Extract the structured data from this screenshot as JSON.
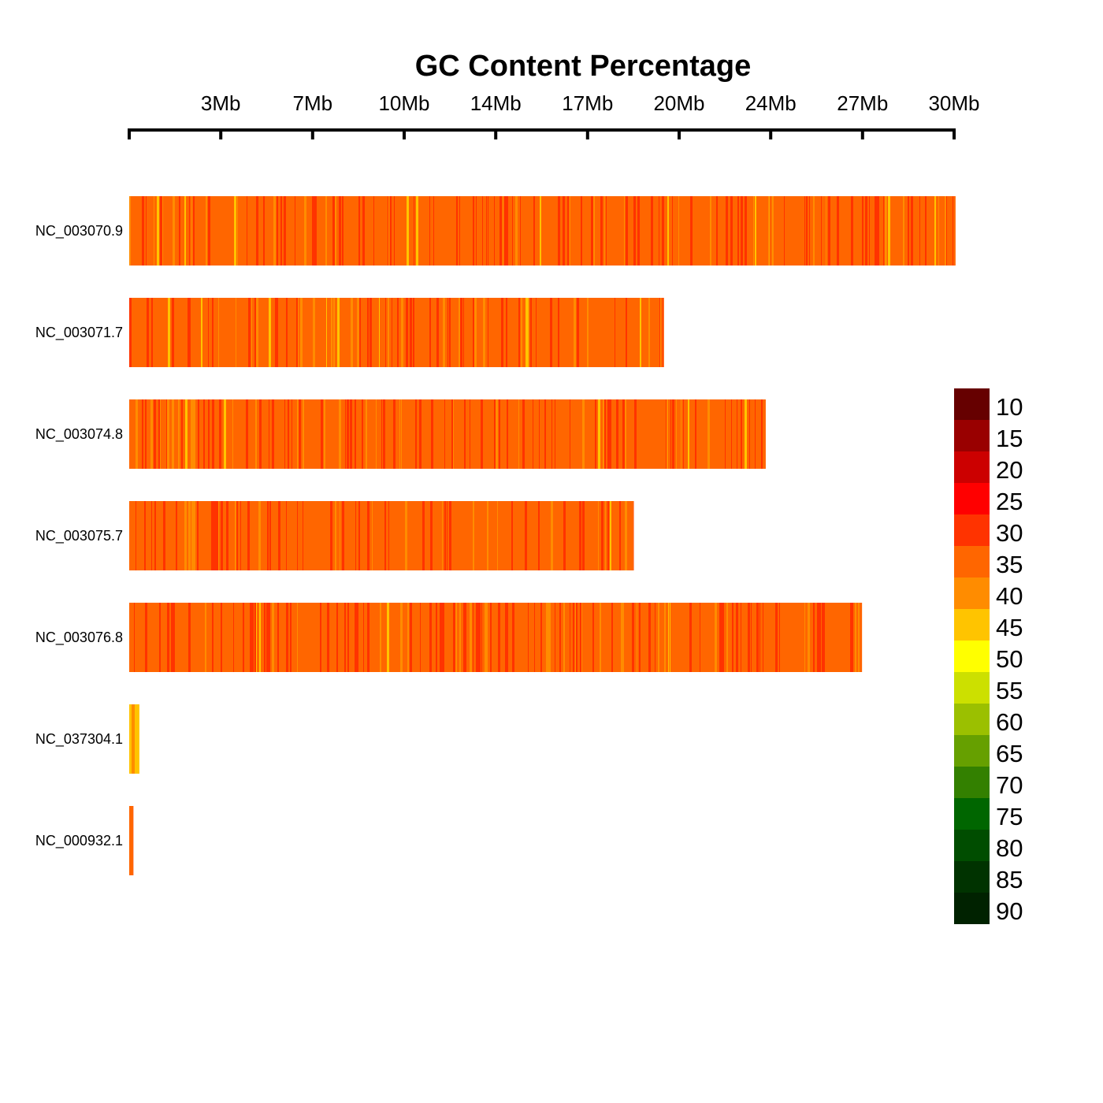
{
  "chart_data": {
    "type": "heatmap",
    "title": "GC Content Percentage",
    "x_axis": {
      "unit": "Mb",
      "ticks": [
        {
          "value": 0,
          "label": ""
        },
        {
          "value": 3.33,
          "label": "3Mb"
        },
        {
          "value": 6.67,
          "label": "7Mb"
        },
        {
          "value": 10.0,
          "label": "10Mb"
        },
        {
          "value": 13.33,
          "label": "14Mb"
        },
        {
          "value": 16.67,
          "label": "17Mb"
        },
        {
          "value": 20.0,
          "label": "20Mb"
        },
        {
          "value": 23.33,
          "label": "24Mb"
        },
        {
          "value": 26.67,
          "label": "27Mb"
        },
        {
          "value": 30.0,
          "label": "30Mb"
        }
      ],
      "range": [
        0,
        30.0
      ]
    },
    "chromosomes": [
      {
        "name": "NC_003070.9",
        "length_mb": 30.05,
        "mean_gc": 36
      },
      {
        "name": "NC_003071.7",
        "length_mb": 19.45,
        "mean_gc": 36
      },
      {
        "name": "NC_003074.8",
        "length_mb": 23.15,
        "mean_gc": 36
      },
      {
        "name": "NC_003075.7",
        "length_mb": 18.35,
        "mean_gc": 36
      },
      {
        "name": "NC_003076.8",
        "length_mb": 26.65,
        "mean_gc": 36
      },
      {
        "name": "NC_037304.1",
        "length_mb": 0.37,
        "mean_gc": 44
      },
      {
        "name": "NC_000932.1",
        "length_mb": 0.15,
        "mean_gc": 37
      }
    ],
    "legend": {
      "position": "right",
      "entries": [
        {
          "value": "10",
          "color": "#660000"
        },
        {
          "value": "15",
          "color": "#990000"
        },
        {
          "value": "20",
          "color": "#cc0000"
        },
        {
          "value": "25",
          "color": "#ff0000"
        },
        {
          "value": "30",
          "color": "#ff3300"
        },
        {
          "value": "35",
          "color": "#ff6600"
        },
        {
          "value": "40",
          "color": "#ff8c00"
        },
        {
          "value": "45",
          "color": "#ffc400"
        },
        {
          "value": "50",
          "color": "#ffff00"
        },
        {
          "value": "55",
          "color": "#cce000"
        },
        {
          "value": "60",
          "color": "#9bc000"
        },
        {
          "value": "65",
          "color": "#66a000"
        },
        {
          "value": "70",
          "color": "#338000"
        },
        {
          "value": "75",
          "color": "#006600"
        },
        {
          "value": "80",
          "color": "#004d00"
        },
        {
          "value": "85",
          "color": "#003300"
        },
        {
          "value": "90",
          "color": "#002200"
        }
      ]
    },
    "grid": false
  }
}
